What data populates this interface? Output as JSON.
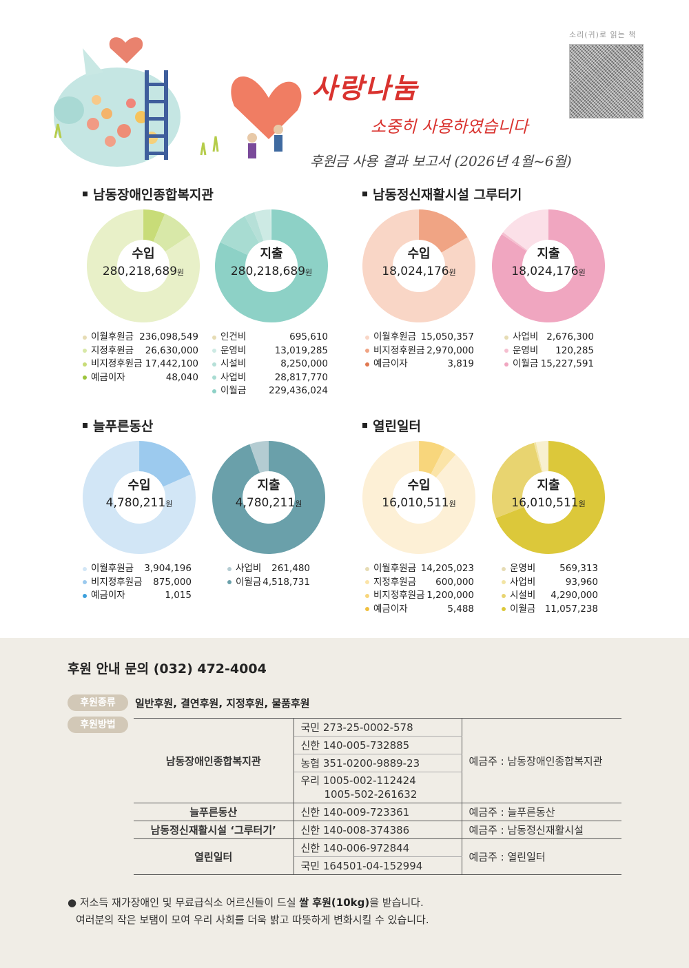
{
  "header": {
    "title_main": "사랑나눔",
    "title_sub": "소중히 사용하였습니다",
    "report": "후원금 사용 결과 보고서 (2026년 4월~6월)",
    "qr_label": "소리(귀)로 읽는 책"
  },
  "sections": [
    {
      "title": "남동장애인종합복지관",
      "income": {
        "label": "수입",
        "amount": "280,218,689",
        "unit": "원",
        "items": [
          {
            "label": "이월후원금",
            "value": "236,098,549",
            "color": "#e8f0c8"
          },
          {
            "label": "지정후원금",
            "value": "26,630,000",
            "color": "#d8e8a8"
          },
          {
            "label": "비지정후원금",
            "value": "17,442,100",
            "color": "#c8dc78"
          },
          {
            "label": "예금이자",
            "value": "48,040",
            "color": "#9cc43c"
          }
        ]
      },
      "expense": {
        "label": "지출",
        "amount": "280,218,689",
        "unit": "원",
        "items": [
          {
            "label": "인건비",
            "value": "695,610",
            "color": "#e0f2ee"
          },
          {
            "label": "운영비",
            "value": "13,019,285",
            "color": "#cdeae4"
          },
          {
            "label": "시설비",
            "value": "8,250,000",
            "color": "#b6e0d8"
          },
          {
            "label": "사업비",
            "value": "28,817,770",
            "color": "#a8dcd2"
          },
          {
            "label": "이월금",
            "value": "229,436,024",
            "color": "#8dd1c6"
          }
        ]
      }
    },
    {
      "title": "남동정신재활시설 그루터기",
      "income": {
        "label": "수입",
        "amount": "18,024,176",
        "unit": "원",
        "items": [
          {
            "label": "이월후원금",
            "value": "15,050,357",
            "color": "#f9d6c6"
          },
          {
            "label": "비지정후원금",
            "value": "2,970,000",
            "color": "#f0a484"
          },
          {
            "label": "예금이자",
            "value": "3,819",
            "color": "#e07850"
          }
        ]
      },
      "expense": {
        "label": "지출",
        "amount": "18,024,176",
        "unit": "원",
        "items": [
          {
            "label": "사업비",
            "value": "2,676,300",
            "color": "#fbe0e8"
          },
          {
            "label": "운영비",
            "value": "120,285",
            "color": "#f5bfd0"
          },
          {
            "label": "이월금",
            "value": "15,227,591",
            "color": "#f0a6c0"
          }
        ]
      }
    },
    {
      "title": "늘푸른동산",
      "income": {
        "label": "수입",
        "amount": "4,780,211",
        "unit": "원",
        "items": [
          {
            "label": "이월후원금",
            "value": "3,904,196",
            "color": "#d2e6f6"
          },
          {
            "label": "비지정후원금",
            "value": "875,000",
            "color": "#9ccaee"
          },
          {
            "label": "예금이자",
            "value": "1,015",
            "color": "#3ca0dc"
          }
        ]
      },
      "expense": {
        "label": "지출",
        "amount": "4,780,211",
        "unit": "원",
        "items": [
          {
            "label": "사업비",
            "value": "261,480",
            "color": "#b4ccd2"
          },
          {
            "label": "이월금",
            "value": "4,518,731",
            "color": "#6aa0aa"
          }
        ]
      }
    },
    {
      "title": "열린일터",
      "income": {
        "label": "수입",
        "amount": "16,010,511",
        "unit": "원",
        "items": [
          {
            "label": "이월후원금",
            "value": "14,205,023",
            "color": "#fdf0d6"
          },
          {
            "label": "지정후원금",
            "value": "600,000",
            "color": "#fbe4a8"
          },
          {
            "label": "비지정후원금",
            "value": "1,200,000",
            "color": "#f8d67c"
          },
          {
            "label": "예금이자",
            "value": "5,488",
            "color": "#f0c040"
          }
        ]
      },
      "expense": {
        "label": "지출",
        "amount": "16,010,511",
        "unit": "원",
        "items": [
          {
            "label": "운영비",
            "value": "569,313",
            "color": "#f8f0d0"
          },
          {
            "label": "사업비",
            "value": "93,960",
            "color": "#f2e4a4"
          },
          {
            "label": "시설비",
            "value": "4,290,000",
            "color": "#e8d470"
          },
          {
            "label": "이월금",
            "value": "11,057,238",
            "color": "#dcc83a"
          }
        ]
      }
    }
  ],
  "footer": {
    "inquiry": "후원 안내 문의 (032) 472-4004",
    "type_pill": "후원종류",
    "types": "일반후원, 결연후원, 지정후원, 물품후원",
    "method_pill": "후원방법",
    "accounts": {
      "org1": "남동장애인종합복지관",
      "org1_a1": "국민 273-25-0002-578",
      "org1_a2": "신한 140-005-732885",
      "org1_a3": "농협 351-0200-9889-23",
      "org1_a4a": "우리 1005-002-112424",
      "org1_a4b": "1005-502-261632",
      "org1_owner": "예금주 : 남동장애인종합복지관",
      "org2": "늘푸른동산",
      "org2_a1": "신한 140-009-723361",
      "org2_owner": "예금주 : 늘푸른동산",
      "org3": "남동정신재활시설 ‘그루터기’",
      "org3_a1": "신한 140-008-374386",
      "org3_owner": "예금주 : 남동정신재활시설",
      "org4": "열린일터",
      "org4_a1": "신한 140-006-972844",
      "org4_a2": "국민 164501-04-152994",
      "org4_owner": "예금주 : 열린일터"
    },
    "note_1a": "저소득 재가장애인 및 무료급식소 어르신들이 드실 ",
    "note_1b": "쌀 후원(10kg)",
    "note_1c": "을 받습니다.",
    "note_2": "여러분의 작은 보탬이 모여 우리 사회를 더욱 밝고 따뜻하게 변화시킬 수 있습니다."
  }
}
